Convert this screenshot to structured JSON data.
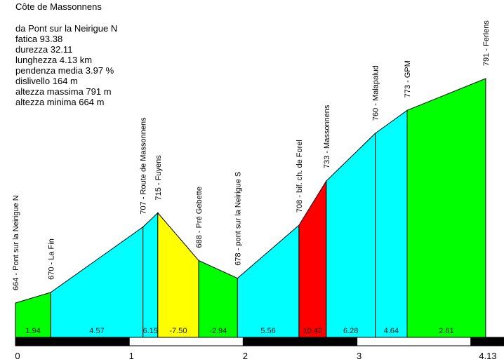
{
  "title": "Côte de Massonnens",
  "info": {
    "lines": [
      "da Pont sur la Neirigue N",
      "fatica 93.38",
      "durezza 32.11",
      "lunghezza 4.13 km",
      "pendenza media 3.97 %",
      "dislivello 164 m",
      "altezza massima 791 m",
      "altezza minima 664 m"
    ]
  },
  "chart_data": {
    "type": "area",
    "title": "Côte de Massonnens",
    "xlim_km": [
      0,
      4.13
    ],
    "ylim_m": [
      664,
      791
    ],
    "grid": false,
    "x_ticks": [
      {
        "km": 0,
        "label": "0"
      },
      {
        "km": 1,
        "label": "1"
      },
      {
        "km": 2,
        "label": "2"
      },
      {
        "km": 3,
        "label": "3"
      },
      {
        "km": 4.13,
        "label": "4.13"
      }
    ],
    "points": [
      {
        "km": 0.0,
        "elevation_m": 664,
        "label": "664 - Pont sur la Neirigue N"
      },
      {
        "km": 0.31,
        "elevation_m": 670,
        "label": "670 - La Fin"
      },
      {
        "km": 1.12,
        "elevation_m": 707,
        "label": "707 - Route de Massonnens"
      },
      {
        "km": 1.25,
        "elevation_m": 715,
        "label": "715 - Fuyens"
      },
      {
        "km": 1.61,
        "elevation_m": 688,
        "label": "688 - Pré Gebette"
      },
      {
        "km": 1.95,
        "elevation_m": 678,
        "label": "678 - pont sur la Neirigue S"
      },
      {
        "km": 2.49,
        "elevation_m": 708,
        "label": "708 - bif. ch. de Forel"
      },
      {
        "km": 2.73,
        "elevation_m": 733,
        "label": "733 - Massonnens"
      },
      {
        "km": 3.16,
        "elevation_m": 760,
        "label": "760 - Malapalud"
      },
      {
        "km": 3.44,
        "elevation_m": 773,
        "label": "773 - GPM"
      },
      {
        "km": 4.13,
        "elevation_m": 791,
        "label": "791 - Ferlens"
      }
    ],
    "segments": [
      {
        "from_km": 0.0,
        "to_km": 0.31,
        "gradient_pct": 1.94,
        "label": "1.94",
        "color": "#00FF00"
      },
      {
        "from_km": 0.31,
        "to_km": 1.12,
        "gradient_pct": 4.57,
        "label": "4.57",
        "color": "#00FFFF"
      },
      {
        "from_km": 1.12,
        "to_km": 1.25,
        "gradient_pct": 6.15,
        "label": "6.15",
        "color": "#00FFFF"
      },
      {
        "from_km": 1.25,
        "to_km": 1.61,
        "gradient_pct": -7.5,
        "label": "-7.50",
        "color": "#FFFF00"
      },
      {
        "from_km": 1.61,
        "to_km": 1.95,
        "gradient_pct": -2.94,
        "label": "-2.94",
        "color": "#00FF00"
      },
      {
        "from_km": 1.95,
        "to_km": 2.49,
        "gradient_pct": 5.56,
        "label": "5.56",
        "color": "#00FFFF"
      },
      {
        "from_km": 2.49,
        "to_km": 2.73,
        "gradient_pct": 10.42,
        "label": "10.42",
        "color": "#FF0000"
      },
      {
        "from_km": 2.73,
        "to_km": 3.16,
        "gradient_pct": 6.28,
        "label": "6.28",
        "color": "#00FFFF"
      },
      {
        "from_km": 3.16,
        "to_km": 3.44,
        "gradient_pct": 4.64,
        "label": "4.64",
        "color": "#00FFFF"
      },
      {
        "from_km": 3.44,
        "to_km": 4.13,
        "gradient_pct": 2.61,
        "label": "2.61",
        "color": "#00FF00"
      }
    ],
    "scalebar": [
      {
        "from_km": 0,
        "to_km": 1,
        "color": "#000000"
      },
      {
        "from_km": 1,
        "to_km": 2,
        "color": "#FFFFFF"
      },
      {
        "from_km": 2,
        "to_km": 3,
        "color": "#000000"
      },
      {
        "from_km": 3,
        "to_km": 4,
        "color": "#FFFFFF"
      },
      {
        "from_km": 4,
        "to_km": 4.13,
        "color": "#000000",
        "to_edge": true
      }
    ],
    "palette": {
      "easy_green": "#00FF00",
      "moderate_cyan": "#00FFFF",
      "steep_red": "#FF0000",
      "descent_yellow": "#FFFF00",
      "text": "#000000"
    }
  }
}
